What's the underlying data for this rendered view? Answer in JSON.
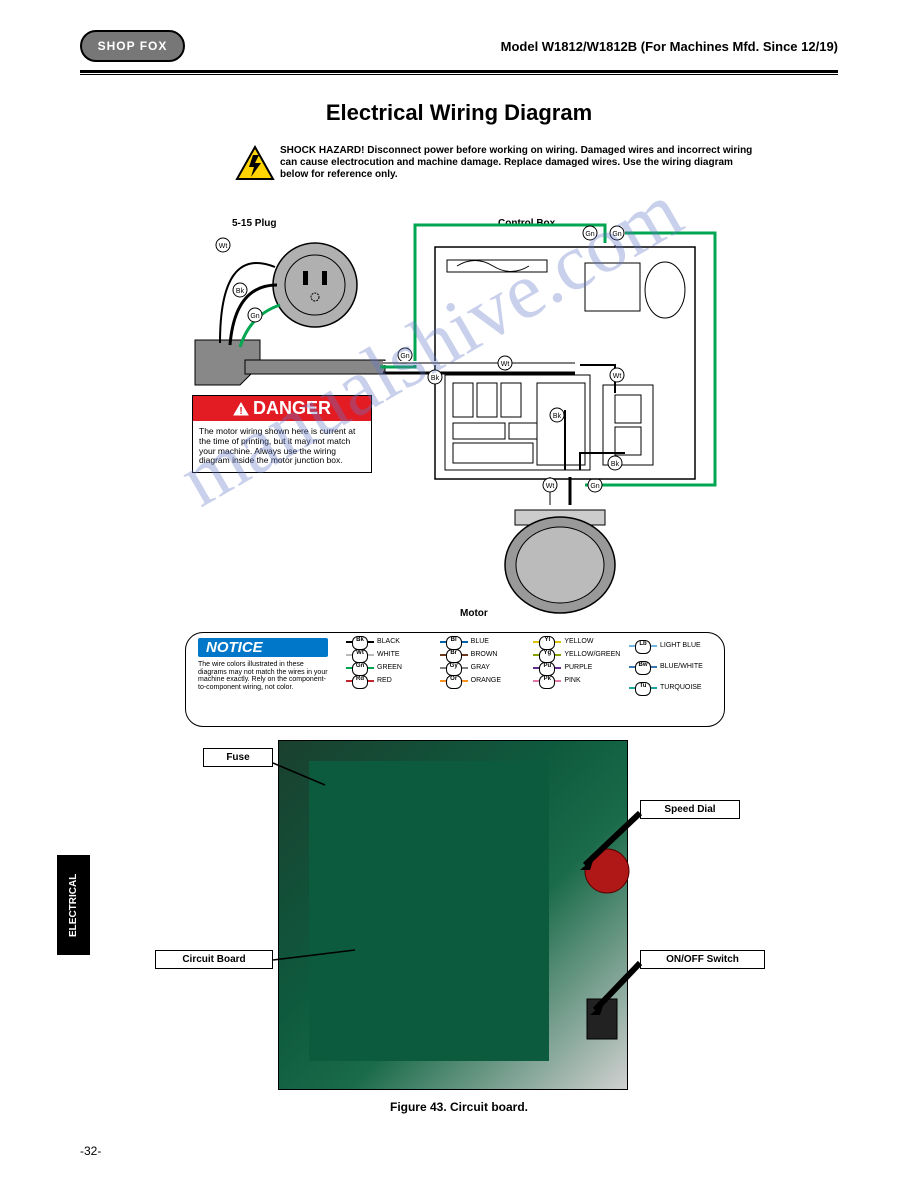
{
  "header": {
    "logo_text": "SHOP FOX",
    "model": "Model W1812/W1812B (For Machines Mfd. Since 12/19)"
  },
  "section_title": "Electrical Wiring Diagram",
  "shock_warning": "SHOCK HAZARD! Disconnect power before working on wiring. Damaged wires and incorrect wiring can cause electrocution and machine damage. Replace damaged wires. Use the wiring diagram below for reference only.",
  "diagram": {
    "plug_label": "5-15 Plug",
    "control_label": "Control Box",
    "motor_label": "Motor",
    "danger_head": "DANGER",
    "danger_body": "The motor wiring shown here is current at the time of printing, but it may not match your machine. Always use the wiring diagram inside the motor junction box.",
    "wire_labels": {
      "wt": "Wt",
      "bk": "Bk",
      "gn": "Gn"
    },
    "colors": {
      "green": "#00a651",
      "black": "#000000",
      "white": "#ffffff",
      "red": "#e31b23"
    }
  },
  "legend": {
    "notice_head": "NOTICE",
    "notice_body": "The wire colors illustrated in these diagrams may not match the wires in your machine exactly. Rely on the component-to-component wiring, not color.",
    "items": [
      {
        "tag": "Bk",
        "label": "BLACK",
        "color": "#000000"
      },
      {
        "tag": "Wt",
        "label": "WHITE",
        "color": "#bbbbbb"
      },
      {
        "tag": "Gn",
        "label": "GREEN",
        "color": "#00a651"
      },
      {
        "tag": "Rd",
        "label": "RED",
        "color": "#c1272d"
      },
      {
        "tag": "Bl",
        "label": "BLUE",
        "color": "#0060aa"
      },
      {
        "tag": "Br",
        "label": "BROWN",
        "color": "#6b3a1b"
      },
      {
        "tag": "Gy",
        "label": "GRAY",
        "color": "#808080"
      },
      {
        "tag": "Or",
        "label": "ORANGE",
        "color": "#f7931e"
      },
      {
        "tag": "Yl",
        "label": "YELLOW",
        "color": "#d9c400"
      },
      {
        "tag": "Yg",
        "label": "YELLOW/GREEN",
        "color": "#8aa000"
      },
      {
        "tag": "Pu",
        "label": "PURPLE",
        "color": "#662d91"
      },
      {
        "tag": "Pk",
        "label": "PINK",
        "color": "#e17aa6"
      },
      {
        "tag": "Lb",
        "label": "LIGHT BLUE",
        "color": "#6fb7e0"
      },
      {
        "tag": "Bw",
        "label": "BLUE/WHITE",
        "color": "#3a78b5"
      },
      {
        "tag": "Tu",
        "label": "TURQUOISE",
        "color": "#1fa39e"
      }
    ]
  },
  "callouts": {
    "fuse": "Fuse",
    "circuit_board": "Circuit Board",
    "speed_dial": "Speed Dial",
    "on_off": "ON/OFF Switch"
  },
  "figure_caption": "Figure 43. Circuit board.",
  "side_tab": "ELECTRICAL",
  "page_number": "-32-",
  "watermark": "manualshive.com"
}
